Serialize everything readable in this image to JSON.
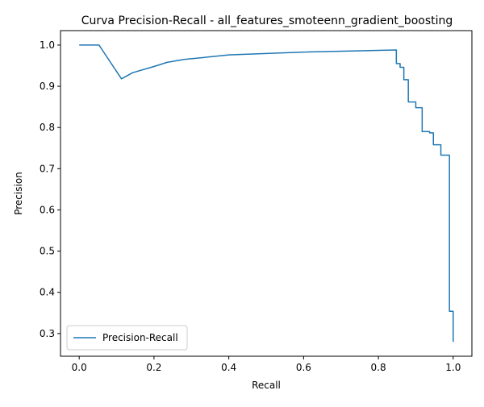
{
  "chart_data": {
    "type": "line",
    "title": "Curva Precision-Recall - all_features_smoteenn_gradient_boosting",
    "xlabel": "Recall",
    "ylabel": "Precision",
    "xlim": [
      -0.05,
      1.05
    ],
    "ylim": [
      0.245,
      1.035
    ],
    "xticks": [
      0.0,
      0.2,
      0.4,
      0.6,
      0.8,
      1.0
    ],
    "xtick_labels": [
      "0.0",
      "0.2",
      "0.4",
      "0.6",
      "0.8",
      "1.0"
    ],
    "yticks": [
      0.3,
      0.4,
      0.5,
      0.6,
      0.7,
      0.8,
      0.9,
      1.0
    ],
    "ytick_labels": [
      "0.3",
      "0.4",
      "0.5",
      "0.6",
      "0.7",
      "0.8",
      "0.9",
      "1.0"
    ],
    "grid": false,
    "legend_position": "lower-left",
    "series": [
      {
        "name": "Precision-Recall",
        "color": "#1f77b4",
        "points": [
          [
            0.0,
            1.0
          ],
          [
            0.053,
            1.0
          ],
          [
            0.113,
            0.918
          ],
          [
            0.143,
            0.933
          ],
          [
            0.2,
            0.948
          ],
          [
            0.235,
            0.958
          ],
          [
            0.28,
            0.965
          ],
          [
            0.4,
            0.976
          ],
          [
            0.6,
            0.983
          ],
          [
            0.8,
            0.987
          ],
          [
            0.848,
            0.988
          ],
          [
            0.848,
            0.955
          ],
          [
            0.858,
            0.955
          ],
          [
            0.858,
            0.946
          ],
          [
            0.868,
            0.946
          ],
          [
            0.868,
            0.916
          ],
          [
            0.88,
            0.916
          ],
          [
            0.88,
            0.862
          ],
          [
            0.9,
            0.862
          ],
          [
            0.9,
            0.848
          ],
          [
            0.917,
            0.848
          ],
          [
            0.917,
            0.79
          ],
          [
            0.937,
            0.79
          ],
          [
            0.937,
            0.787
          ],
          [
            0.947,
            0.787
          ],
          [
            0.947,
            0.758
          ],
          [
            0.967,
            0.758
          ],
          [
            0.967,
            0.733
          ],
          [
            0.99,
            0.733
          ],
          [
            0.99,
            0.354
          ],
          [
            1.0,
            0.354
          ],
          [
            1.0,
            0.28
          ]
        ]
      }
    ]
  }
}
